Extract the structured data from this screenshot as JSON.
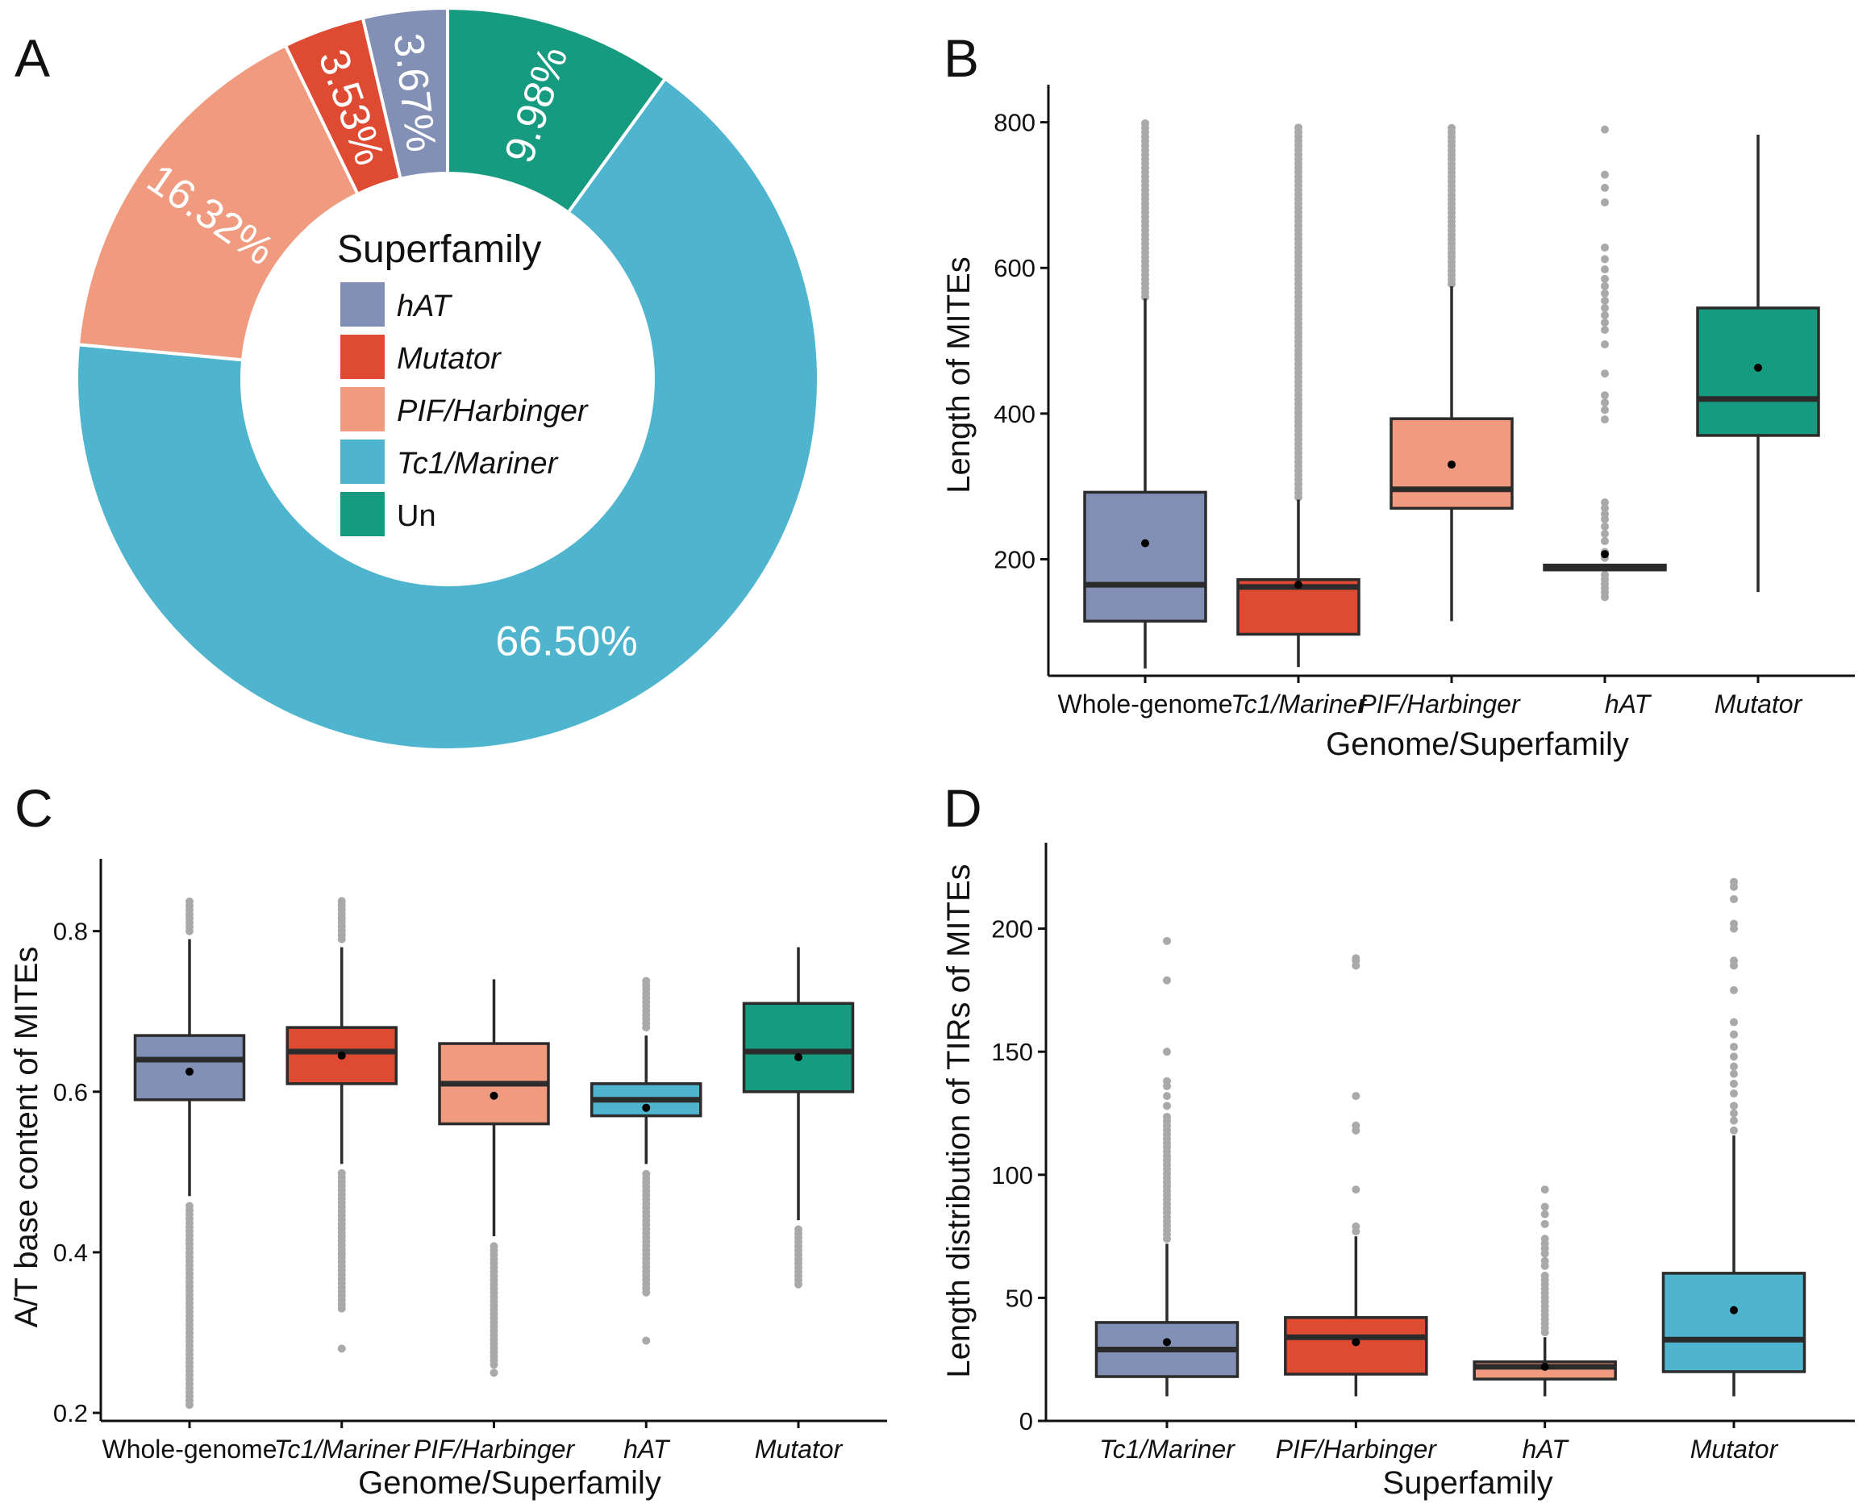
{
  "colors": {
    "hAT": "#8390b5",
    "Mutator": "#df4a32",
    "PIF/Harbinger": "#f09a7f",
    "Tc1/Mariner": "#4fb4cd",
    "Un": "#169b80",
    "outlier": "#a9a9a9",
    "box_line": "#2b2b2b"
  },
  "chart_data": [
    {
      "panel": "A",
      "type": "pie",
      "style": "donut",
      "legend_title": "Superfamily",
      "slices": [
        {
          "label": "Un",
          "value": 9.98,
          "text": "9.98%",
          "color": "#169b80"
        },
        {
          "label": "Tc1/Mariner",
          "value": 66.5,
          "text": "66.50%",
          "color": "#4fb4cd"
        },
        {
          "label": "PIF/Harbinger",
          "value": 16.32,
          "text": "16.32%",
          "color": "#f09a7f"
        },
        {
          "label": "Mutator",
          "value": 3.53,
          "text": "3.53%",
          "color": "#df4a32"
        },
        {
          "label": "hAT",
          "value": 3.67,
          "text": "3.67%",
          "color": "#8390b5"
        }
      ],
      "legend": [
        {
          "label": "hAT",
          "color": "#8390b5",
          "italic": true
        },
        {
          "label": "Mutator",
          "color": "#df4a32",
          "italic": true
        },
        {
          "label": "PIF/Harbinger",
          "color": "#f09a7f",
          "italic": true
        },
        {
          "label": "Tc1/Mariner",
          "color": "#4fb4cd",
          "italic": true
        },
        {
          "label": "Un",
          "color": "#169b80",
          "italic": false
        }
      ]
    },
    {
      "panel": "B",
      "type": "box",
      "xlabel": "Genome/Superfamily",
      "ylabel": "Length of MITEs",
      "ylim": [
        40,
        835
      ],
      "yticks": [
        200,
        400,
        600,
        800
      ],
      "categories": [
        "Whole-genome",
        "Tc1/Mariner",
        "PIF/Harbinger",
        "hAT",
        "Mutator"
      ],
      "italic_categories": [
        false,
        true,
        true,
        true,
        true
      ],
      "boxes": [
        {
          "name": "Whole-genome",
          "color": "#8390b5",
          "q1": 115,
          "median": 165,
          "q3": 292,
          "whisker_low": 50,
          "whisker_high": 558,
          "mean": 222,
          "outliers_dense": [
            560,
            800
          ],
          "outliers": []
        },
        {
          "name": "Tc1/Mariner",
          "color": "#df4a32",
          "q1": 97,
          "median": 162,
          "q3": 172,
          "whisker_low": 52,
          "whisker_high": 282,
          "mean": 165,
          "outliers_dense": [
            285,
            795
          ],
          "outliers": []
        },
        {
          "name": "PIF/Harbinger",
          "color": "#f09a7f",
          "q1": 270,
          "median": 296,
          "q3": 393,
          "whisker_low": 115,
          "whisker_high": 575,
          "mean": 330,
          "outliers_dense": [
            578,
            795
          ],
          "outliers": []
        },
        {
          "name": "hAT",
          "color": "#4fb4cd",
          "q1": 186,
          "median": 190,
          "q3": 192,
          "whisker_low": 186,
          "whisker_high": 192,
          "mean": 207,
          "outliers_dense": [
            148,
            182
          ],
          "outliers": [
            202,
            210,
            225,
            235,
            245,
            255,
            262,
            270,
            278,
            392,
            405,
            415,
            425,
            455,
            495,
            515,
            525,
            535,
            545,
            555,
            565,
            575,
            585,
            598,
            612,
            628,
            690,
            710,
            728,
            790
          ]
        },
        {
          "name": "Mutator",
          "color": "#169b80",
          "q1": 370,
          "median": 420,
          "q3": 545,
          "whisker_low": 155,
          "whisker_high": 783,
          "mean": 463,
          "outliers_dense": [],
          "outliers": []
        }
      ]
    },
    {
      "panel": "C",
      "type": "box",
      "xlabel": "Genome/Superfamily",
      "ylabel": "A/T base content of MITEs",
      "ylim": [
        0.19,
        0.875
      ],
      "yticks": [
        0.2,
        0.4,
        0.6,
        0.8
      ],
      "ytick_labels": [
        "0.2",
        "0.4",
        "0.6",
        "0.8"
      ],
      "categories": [
        "Whole-genome",
        "Tc1/Mariner",
        "PIF/Harbinger",
        "hAT",
        "Mutator"
      ],
      "italic_categories": [
        false,
        true,
        true,
        true,
        true
      ],
      "boxes": [
        {
          "name": "Whole-genome",
          "color": "#8390b5",
          "q1": 0.59,
          "median": 0.64,
          "q3": 0.67,
          "whisker_low": 0.47,
          "whisker_high": 0.79,
          "mean": 0.625,
          "outliers_dense": [
            0.21,
            0.46
          ],
          "outliers_dense_hi": [
            0.8,
            0.84
          ],
          "outliers": []
        },
        {
          "name": "Tc1/Mariner",
          "color": "#df4a32",
          "q1": 0.61,
          "median": 0.65,
          "q3": 0.68,
          "whisker_low": 0.51,
          "whisker_high": 0.78,
          "mean": 0.645,
          "outliers_dense": [
            0.33,
            0.5
          ],
          "outliers_dense_hi": [
            0.79,
            0.84
          ],
          "outliers": [
            0.28
          ]
        },
        {
          "name": "PIF/Harbinger",
          "color": "#f09a7f",
          "q1": 0.56,
          "median": 0.61,
          "q3": 0.66,
          "whisker_low": 0.42,
          "whisker_high": 0.74,
          "mean": 0.595,
          "outliers_dense": [
            0.26,
            0.41
          ],
          "outliers_dense_hi": [],
          "outliers": [
            0.25
          ]
        },
        {
          "name": "hAT",
          "color": "#4fb4cd",
          "q1": 0.57,
          "median": 0.59,
          "q3": 0.61,
          "whisker_low": 0.51,
          "whisker_high": 0.67,
          "mean": 0.58,
          "outliers_dense": [
            0.35,
            0.5
          ],
          "outliers_dense_hi": [
            0.68,
            0.74
          ],
          "outliers": [
            0.29
          ]
        },
        {
          "name": "Mutator",
          "color": "#169b80",
          "q1": 0.6,
          "median": 0.65,
          "q3": 0.71,
          "whisker_low": 0.44,
          "whisker_high": 0.78,
          "mean": 0.643,
          "outliers_dense": [
            0.36,
            0.43
          ],
          "outliers_dense_hi": [],
          "outliers": []
        }
      ]
    },
    {
      "panel": "D",
      "type": "box",
      "xlabel": "Superfamily",
      "ylabel": "Length distribution of TIRs of MITEs",
      "ylim": [
        0,
        230
      ],
      "yticks": [
        0,
        50,
        100,
        150,
        200
      ],
      "categories": [
        "Tc1/Mariner",
        "PIF/Harbinger",
        "hAT",
        "Mutator"
      ],
      "italic_categories": [
        true,
        true,
        true,
        true
      ],
      "boxes": [
        {
          "name": "Tc1/Mariner",
          "color": "#8390b5",
          "q1": 18,
          "median": 29,
          "q3": 40,
          "whisker_low": 10,
          "whisker_high": 72,
          "mean": 32,
          "outliers_dense": [
            74,
            125
          ],
          "outliers": [
            128,
            132,
            136,
            138,
            150,
            179,
            195
          ]
        },
        {
          "name": "PIF/Harbinger",
          "color": "#df4a32",
          "q1": 19,
          "median": 34,
          "q3": 42,
          "whisker_low": 10,
          "whisker_high": 75,
          "mean": 32,
          "outliers_dense": [],
          "outliers": [
            77,
            79,
            94,
            118,
            120,
            132,
            185,
            187,
            188
          ]
        },
        {
          "name": "hAT",
          "color": "#f09a7f",
          "q1": 17,
          "median": 22,
          "q3": 24,
          "whisker_low": 10,
          "whisker_high": 34,
          "mean": 22,
          "outliers_dense": [
            36,
            60
          ],
          "outliers": [
            63,
            65,
            68,
            70,
            72,
            74,
            80,
            84,
            87,
            94
          ]
        },
        {
          "name": "Mutator",
          "color": "#4fb4cd",
          "q1": 20,
          "median": 33,
          "q3": 60,
          "whisker_low": 10,
          "whisker_high": 116,
          "mean": 45,
          "outliers_dense": [],
          "outliers": [
            118,
            122,
            125,
            128,
            133,
            137,
            141,
            144,
            148,
            152,
            157,
            162,
            175,
            185,
            187,
            200,
            202,
            212,
            217,
            219
          ]
        }
      ]
    }
  ]
}
